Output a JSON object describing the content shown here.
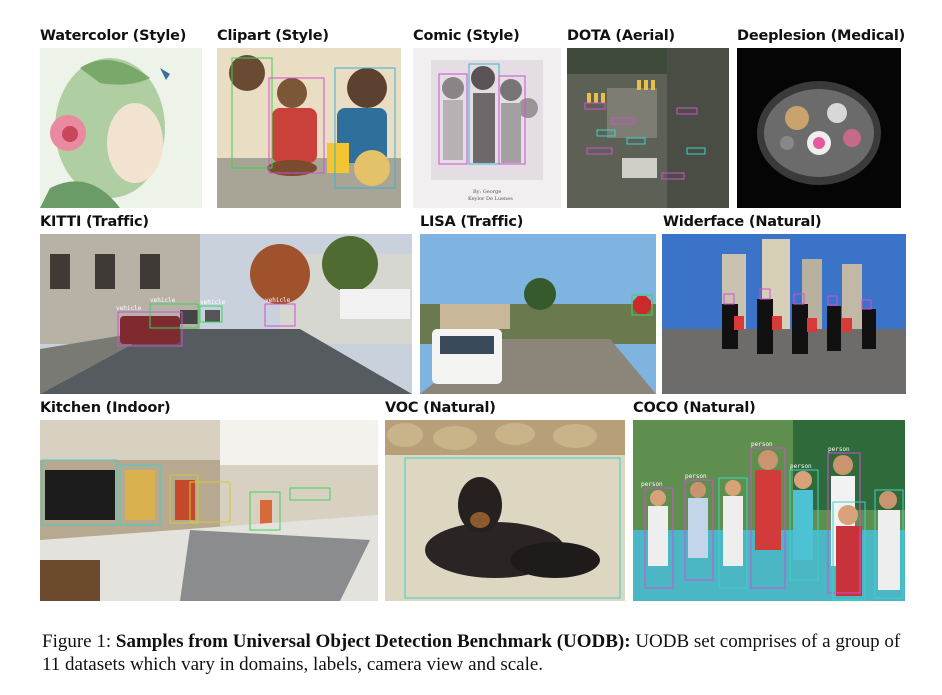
{
  "panels": [
    {
      "label": "Watercolor (Style)"
    },
    {
      "label": "Clipart (Style)"
    },
    {
      "label": "Comic (Style)"
    },
    {
      "label": "DOTA (Aerial)"
    },
    {
      "label": "Deeplesion (Medical)"
    },
    {
      "label": "KITTI (Traffic)"
    },
    {
      "label": "LISA (Traffic)"
    },
    {
      "label": "Widerface (Natural)"
    },
    {
      "label": "Kitchen (Indoor)"
    },
    {
      "label": "VOC (Natural)"
    },
    {
      "label": "COCO (Natural)"
    }
  ],
  "caption": {
    "prefix": "Figure 1: ",
    "bold": "Samples from Universal Object Detection Benchmark (UODB):",
    "text": " UODB set comprises of a group of 11 datasets which vary in domains, labels, camera view and scale."
  },
  "annotations": {
    "kitti_tags": [
      "vehicle",
      "vehicle",
      "vehicle",
      "vehicle",
      "vehicle"
    ],
    "coco_tags": [
      "person",
      "person",
      "person",
      "person",
      "person"
    ],
    "comic_signature": "By: George\nKeylor De Luenes"
  }
}
